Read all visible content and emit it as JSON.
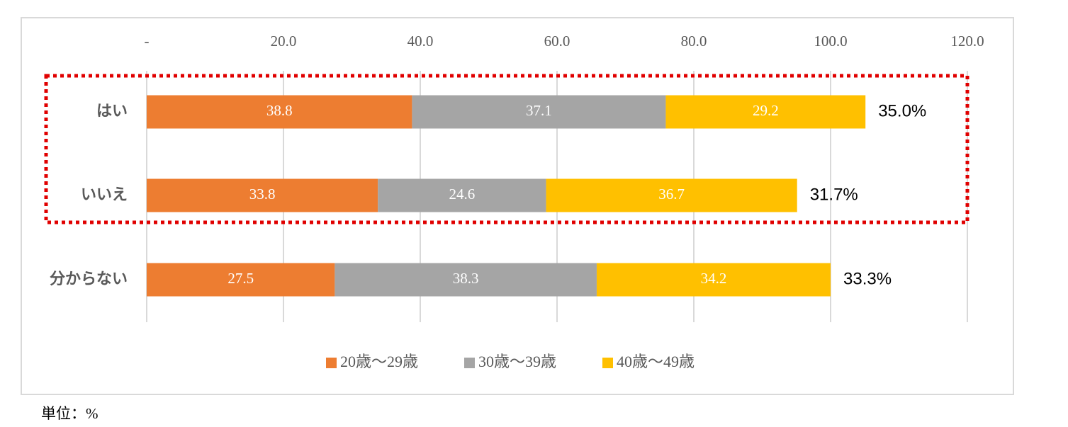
{
  "chart_data": {
    "type": "stacked-bar-horizontal",
    "categories": [
      "はい",
      "いいえ",
      "分からない"
    ],
    "series": [
      {
        "name": "20歳～29歳",
        "color": "#ED7D31",
        "values": [
          38.8,
          33.8,
          27.5
        ]
      },
      {
        "name": "30歳～39歳",
        "color": "#A5A5A5",
        "values": [
          37.1,
          24.6,
          38.3
        ]
      },
      {
        "name": "40歳～49歳",
        "color": "#FFC000",
        "values": [
          29.2,
          36.7,
          34.2
        ]
      }
    ],
    "annotations": [
      "35.0%",
      "31.7%",
      "33.3%"
    ],
    "xlim": [
      0,
      120
    ],
    "xticks": [
      {
        "value": 0,
        "label": "-"
      },
      {
        "value": 20,
        "label": "20.0"
      },
      {
        "value": 40,
        "label": "40.0"
      },
      {
        "value": 60,
        "label": "60.0"
      },
      {
        "value": 80,
        "label": "80.0"
      },
      {
        "value": 100,
        "label": "100.0"
      },
      {
        "value": 120,
        "label": "120.0"
      }
    ],
    "grid": true,
    "legend": "bottom",
    "unit_note": "単位：%"
  }
}
